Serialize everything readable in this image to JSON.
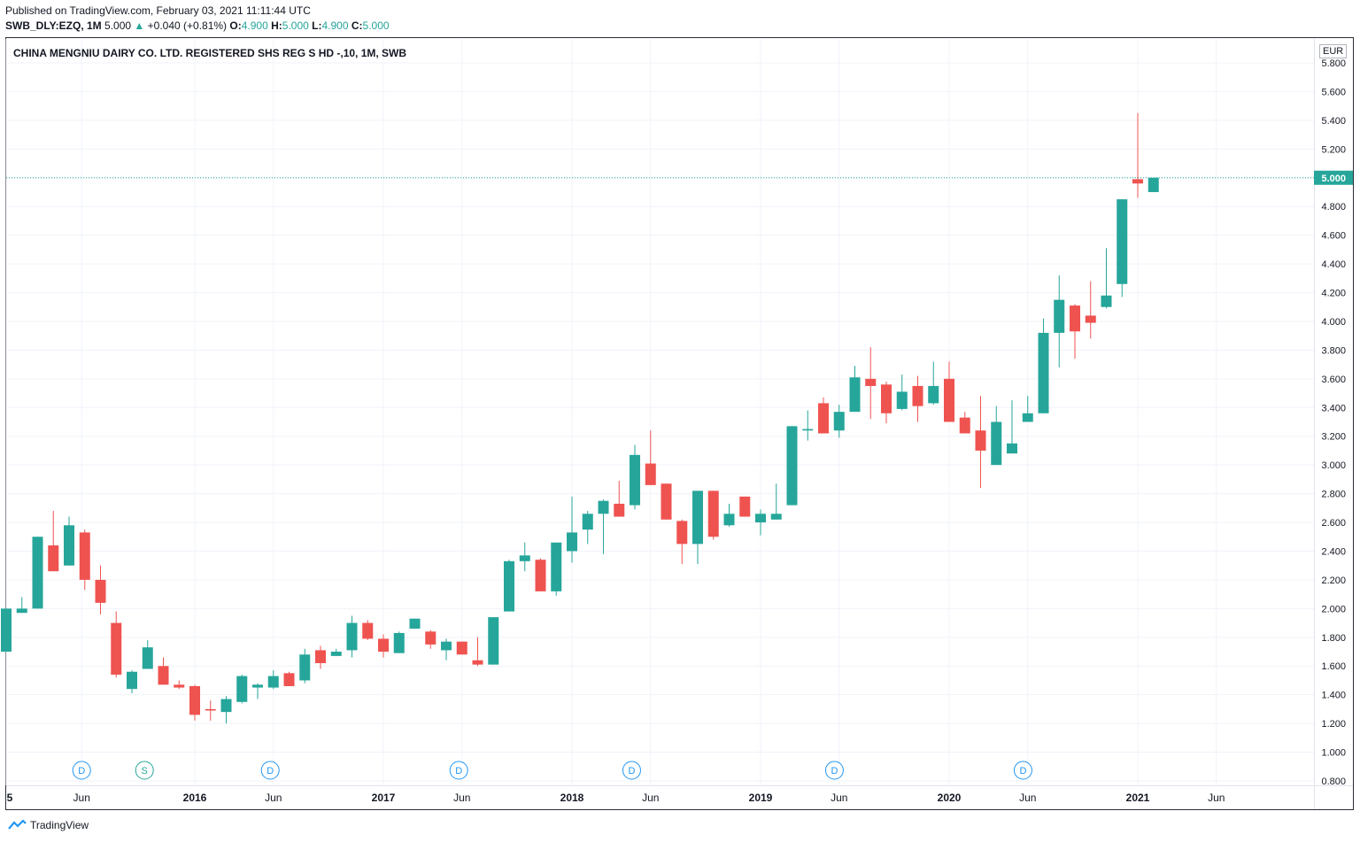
{
  "header": {
    "published": "Published on TradingView.com, February 03, 2021 11:11:44 UTC",
    "symbol": "SWB_DLY:EZQ, 1M",
    "last": "5.000",
    "arrow": "▲",
    "change": "+0.040 (+0.81%)",
    "o_label": "O:",
    "o_value": "4.900",
    "h_label": "H:",
    "h_value": "5.000",
    "l_label": "L:",
    "l_value": "4.900",
    "c_label": "C:",
    "c_value": "5.000"
  },
  "currency": "EUR",
  "brand": "TradingView",
  "colors": {
    "up": "#26a69a",
    "down": "#ef5350",
    "grid": "#f0f3fa",
    "text": "#131722",
    "marker": "#2196f3",
    "split": "#26a69a"
  },
  "chart_data": {
    "type": "candlestick",
    "title": "CHINA MENGNIU DAIRY CO. LTD. REGISTERED SHS REG S HD -,10, 1M, SWB",
    "ylim": [
      0.8,
      5.8
    ],
    "yticks": [
      "5.800",
      "5.600",
      "5.400",
      "5.200",
      "5.000",
      "4.800",
      "4.600",
      "4.400",
      "4.200",
      "4.000",
      "3.800",
      "3.600",
      "3.400",
      "3.200",
      "3.000",
      "2.800",
      "2.600",
      "2.400",
      "2.200",
      "2.000",
      "1.800",
      "1.600",
      "1.400",
      "1.200",
      "1.000",
      "0.800"
    ],
    "last_price_label": "5.000",
    "last_price": 5.0,
    "x_labels": [
      {
        "label": "5",
        "month": 0,
        "bold": true
      },
      {
        "label": "Jun",
        "month": 4.8,
        "bold": false
      },
      {
        "label": "2016",
        "month": 12,
        "bold": true
      },
      {
        "label": "Jun",
        "month": 17,
        "bold": false
      },
      {
        "label": "2017",
        "month": 24,
        "bold": true
      },
      {
        "label": "Jun",
        "month": 29,
        "bold": false
      },
      {
        "label": "2018",
        "month": 36,
        "bold": true
      },
      {
        "label": "Jun",
        "month": 41,
        "bold": false
      },
      {
        "label": "2019",
        "month": 48,
        "bold": true
      },
      {
        "label": "Jun",
        "month": 53,
        "bold": false
      },
      {
        "label": "2020",
        "month": 60,
        "bold": true
      },
      {
        "label": "Jun",
        "month": 65,
        "bold": false
      },
      {
        "label": "2021",
        "month": 72,
        "bold": true
      },
      {
        "label": "Jun",
        "month": 77,
        "bold": false
      }
    ],
    "events": [
      {
        "label": "D",
        "month": 4.8,
        "kind": "dividend"
      },
      {
        "label": "S",
        "month": 8.8,
        "kind": "split"
      },
      {
        "label": "D",
        "month": 16.8,
        "kind": "dividend"
      },
      {
        "label": "D",
        "month": 28.8,
        "kind": "dividend"
      },
      {
        "label": "D",
        "month": 39.8,
        "kind": "dividend"
      },
      {
        "label": "D",
        "month": 52.7,
        "kind": "dividend"
      },
      {
        "label": "D",
        "month": 64.7,
        "kind": "dividend"
      }
    ],
    "ohlc": [
      [
        1.7,
        2.0,
        1.7,
        2.0
      ],
      [
        1.97,
        2.08,
        1.97,
        2.0
      ],
      [
        2.0,
        2.5,
        2.0,
        2.5
      ],
      [
        2.44,
        2.68,
        2.26,
        2.26
      ],
      [
        2.3,
        2.64,
        2.3,
        2.58
      ],
      [
        2.53,
        2.55,
        2.13,
        2.2
      ],
      [
        2.2,
        2.3,
        1.96,
        2.04
      ],
      [
        1.9,
        1.98,
        1.52,
        1.54
      ],
      [
        1.44,
        1.57,
        1.41,
        1.56
      ],
      [
        1.58,
        1.78,
        1.58,
        1.73
      ],
      [
        1.6,
        1.66,
        1.47,
        1.47
      ],
      [
        1.47,
        1.5,
        1.44,
        1.45
      ],
      [
        1.46,
        1.47,
        1.22,
        1.26
      ],
      [
        1.3,
        1.36,
        1.22,
        1.29
      ],
      [
        1.28,
        1.39,
        1.2,
        1.37
      ],
      [
        1.35,
        1.54,
        1.34,
        1.53
      ],
      [
        1.45,
        1.48,
        1.37,
        1.47
      ],
      [
        1.45,
        1.57,
        1.44,
        1.53
      ],
      [
        1.55,
        1.56,
        1.46,
        1.46
      ],
      [
        1.5,
        1.72,
        1.48,
        1.68
      ],
      [
        1.71,
        1.74,
        1.58,
        1.62
      ],
      [
        1.67,
        1.72,
        1.67,
        1.7
      ],
      [
        1.71,
        1.95,
        1.66,
        1.9
      ],
      [
        1.9,
        1.92,
        1.78,
        1.79
      ],
      [
        1.79,
        1.82,
        1.66,
        1.7
      ],
      [
        1.69,
        1.84,
        1.69,
        1.83
      ],
      [
        1.86,
        1.93,
        1.86,
        1.93
      ],
      [
        1.84,
        1.85,
        1.72,
        1.75
      ],
      [
        1.71,
        1.79,
        1.64,
        1.77
      ],
      [
        1.77,
        1.77,
        1.68,
        1.68
      ],
      [
        1.64,
        1.8,
        1.6,
        1.61
      ],
      [
        1.61,
        1.94,
        1.61,
        1.94
      ],
      [
        1.98,
        2.34,
        1.98,
        2.33
      ],
      [
        2.33,
        2.46,
        2.26,
        2.37
      ],
      [
        2.34,
        2.35,
        2.12,
        2.12
      ],
      [
        2.12,
        2.43,
        2.09,
        2.46
      ],
      [
        2.4,
        2.78,
        2.32,
        2.53
      ],
      [
        2.55,
        2.68,
        2.45,
        2.66
      ],
      [
        2.66,
        2.76,
        2.38,
        2.75
      ],
      [
        2.73,
        2.89,
        2.64,
        2.64
      ],
      [
        2.72,
        3.14,
        2.69,
        3.07
      ],
      [
        3.01,
        3.24,
        2.86,
        2.86
      ],
      [
        2.87,
        2.87,
        2.62,
        2.62
      ],
      [
        2.61,
        2.62,
        2.31,
        2.45
      ],
      [
        2.45,
        2.82,
        2.31,
        2.82
      ],
      [
        2.82,
        2.82,
        2.48,
        2.5
      ],
      [
        2.58,
        2.73,
        2.57,
        2.66
      ],
      [
        2.78,
        2.78,
        2.64,
        2.64
      ],
      [
        2.6,
        2.69,
        2.51,
        2.66
      ],
      [
        2.62,
        2.87,
        2.62,
        2.66
      ],
      [
        2.72,
        3.27,
        2.72,
        3.27
      ],
      [
        3.24,
        3.38,
        3.17,
        3.25
      ],
      [
        3.43,
        3.47,
        3.22,
        3.22
      ],
      [
        3.24,
        3.42,
        3.19,
        3.37
      ],
      [
        3.37,
        3.69,
        3.37,
        3.61
      ],
      [
        3.6,
        3.82,
        3.32,
        3.55
      ],
      [
        3.56,
        3.58,
        3.29,
        3.36
      ],
      [
        3.39,
        3.63,
        3.38,
        3.51
      ],
      [
        3.55,
        3.62,
        3.3,
        3.41
      ],
      [
        3.43,
        3.72,
        3.42,
        3.55
      ],
      [
        3.6,
        3.72,
        3.3,
        3.3
      ],
      [
        3.33,
        3.37,
        3.22,
        3.22
      ],
      [
        3.24,
        3.48,
        2.84,
        3.1
      ],
      [
        3.0,
        3.41,
        3.0,
        3.3
      ],
      [
        3.08,
        3.45,
        3.08,
        3.15
      ],
      [
        3.3,
        3.48,
        3.3,
        3.36
      ],
      [
        3.36,
        4.02,
        3.36,
        3.92
      ],
      [
        3.92,
        4.32,
        3.68,
        4.15
      ],
      [
        4.11,
        4.12,
        3.74,
        3.93
      ],
      [
        4.04,
        4.28,
        3.88,
        3.99
      ],
      [
        4.1,
        4.51,
        4.09,
        4.18
      ],
      [
        4.26,
        4.85,
        4.17,
        4.85
      ],
      [
        4.99,
        5.45,
        4.86,
        4.96
      ],
      [
        4.9,
        5.0,
        4.9,
        5.0
      ]
    ]
  }
}
